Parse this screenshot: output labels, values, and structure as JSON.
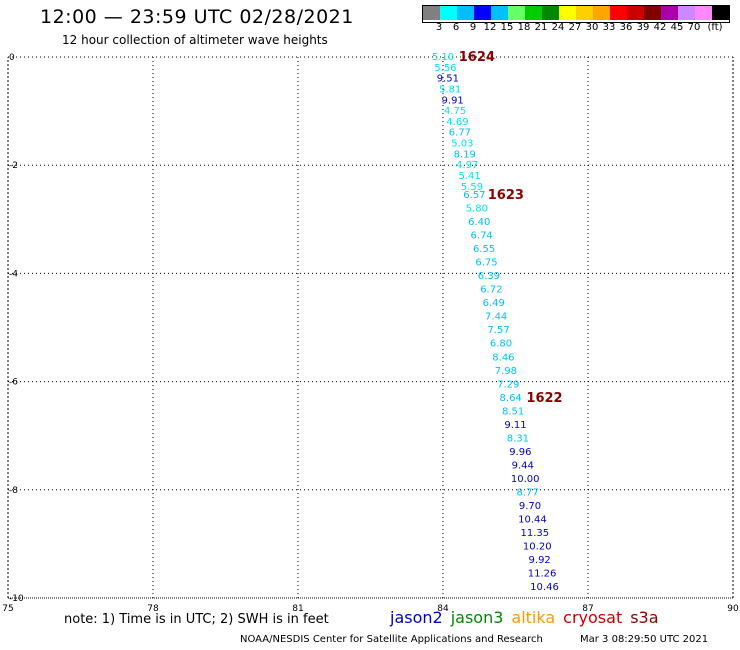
{
  "header": {
    "title": "12:00 — 23:59 UTC 02/28/2021",
    "subtitle": "12 hour collection of altimeter wave heights"
  },
  "colorbar": {
    "colors": [
      "#808080",
      "#00ffff",
      "#00bfff",
      "#0000ff",
      "#00c0ff",
      "#66ff66",
      "#00cc00",
      "#008800",
      "#ffff00",
      "#ffd000",
      "#ffa500",
      "#ff0000",
      "#cc0000",
      "#800000",
      "#aa00aa",
      "#cc88ff",
      "#ff88ff",
      "#000000"
    ],
    "labels": [
      "3",
      "6",
      "9",
      "12",
      "15",
      "18",
      "21",
      "24",
      "27",
      "30",
      "33",
      "36",
      "39",
      "42",
      "45",
      "70"
    ],
    "unit": "(ft)"
  },
  "chart_data": {
    "type": "scatter",
    "xlim": [
      75,
      90
    ],
    "ylim": [
      -10,
      0
    ],
    "x_ticks": [
      "75",
      "78",
      "81",
      "84",
      "87",
      "90"
    ],
    "y_ticks": [
      "0",
      "-2",
      "-4",
      "-6",
      "-8",
      "-10"
    ],
    "points": [
      {
        "x": 84.0,
        "y": 0.0,
        "v": "5.10",
        "c": "#00e5ee"
      },
      {
        "x": 84.05,
        "y": -0.2,
        "v": "5.56",
        "c": "#00e5ee"
      },
      {
        "x": 84.1,
        "y": -0.4,
        "v": "9.51",
        "c": "#0000cd"
      },
      {
        "x": 84.15,
        "y": -0.6,
        "v": "5.81",
        "c": "#00e5ee"
      },
      {
        "x": 84.2,
        "y": -0.8,
        "v": "9.91",
        "c": "#0000cd"
      },
      {
        "x": 84.25,
        "y": -1.0,
        "v": "4.75",
        "c": "#00e5ee"
      },
      {
        "x": 84.3,
        "y": -1.2,
        "v": "4.69",
        "c": "#00e5ee"
      },
      {
        "x": 84.35,
        "y": -1.4,
        "v": "6.77",
        "c": "#00bfff"
      },
      {
        "x": 84.4,
        "y": -1.6,
        "v": "5.03",
        "c": "#00e5ee"
      },
      {
        "x": 84.45,
        "y": -1.8,
        "v": "8.19",
        "c": "#00bfff"
      },
      {
        "x": 84.5,
        "y": -2.0,
        "v": "4.97",
        "c": "#00e5ee"
      },
      {
        "x": 84.55,
        "y": -2.2,
        "v": "5.41",
        "c": "#00e5ee"
      },
      {
        "x": 84.6,
        "y": -2.4,
        "v": "5.59",
        "c": "#00e5ee"
      },
      {
        "x": 84.65,
        "y": -2.55,
        "v": "6.57",
        "c": "#00bfff"
      },
      {
        "x": 84.7,
        "y": -2.8,
        "v": "5.80",
        "c": "#00e5ee"
      },
      {
        "x": 84.75,
        "y": -3.05,
        "v": "6.40",
        "c": "#00bfff"
      },
      {
        "x": 84.8,
        "y": -3.3,
        "v": "6.74",
        "c": "#00bfff"
      },
      {
        "x": 84.85,
        "y": -3.55,
        "v": "6.55",
        "c": "#00bfff"
      },
      {
        "x": 84.9,
        "y": -3.8,
        "v": "6.75",
        "c": "#00bfff"
      },
      {
        "x": 84.95,
        "y": -4.05,
        "v": "6.39",
        "c": "#00bfff"
      },
      {
        "x": 85.0,
        "y": -4.3,
        "v": "6.72",
        "c": "#00bfff"
      },
      {
        "x": 85.05,
        "y": -4.55,
        "v": "6.49",
        "c": "#00bfff"
      },
      {
        "x": 85.1,
        "y": -4.8,
        "v": "7.44",
        "c": "#00bfff"
      },
      {
        "x": 85.15,
        "y": -5.05,
        "v": "7.57",
        "c": "#00bfff"
      },
      {
        "x": 85.2,
        "y": -5.3,
        "v": "6.80",
        "c": "#00bfff"
      },
      {
        "x": 85.25,
        "y": -5.55,
        "v": "8.46",
        "c": "#00bfff"
      },
      {
        "x": 85.3,
        "y": -5.8,
        "v": "7.98",
        "c": "#00bfff"
      },
      {
        "x": 85.35,
        "y": -6.05,
        "v": "7.29",
        "c": "#00bfff"
      },
      {
        "x": 85.4,
        "y": -6.3,
        "v": "8.64",
        "c": "#00bfff"
      },
      {
        "x": 85.45,
        "y": -6.55,
        "v": "8.51",
        "c": "#00bfff"
      },
      {
        "x": 85.5,
        "y": -6.8,
        "v": "9.11",
        "c": "#0000cd"
      },
      {
        "x": 85.55,
        "y": -7.05,
        "v": "8.31",
        "c": "#00bfff"
      },
      {
        "x": 85.6,
        "y": -7.3,
        "v": "9.96",
        "c": "#0000cd"
      },
      {
        "x": 85.65,
        "y": -7.55,
        "v": "9.44",
        "c": "#0000cd"
      },
      {
        "x": 85.7,
        "y": -7.8,
        "v": "10.00",
        "c": "#0000cd"
      },
      {
        "x": 85.75,
        "y": -8.05,
        "v": "8.77",
        "c": "#00bfff"
      },
      {
        "x": 85.8,
        "y": -8.3,
        "v": "9.70",
        "c": "#0000cd"
      },
      {
        "x": 85.85,
        "y": -8.55,
        "v": "10.44",
        "c": "#0000cd"
      },
      {
        "x": 85.9,
        "y": -8.8,
        "v": "11.35",
        "c": "#0000cd"
      },
      {
        "x": 85.95,
        "y": -9.05,
        "v": "10.20",
        "c": "#0000cd"
      },
      {
        "x": 86.0,
        "y": -9.3,
        "v": "9.92",
        "c": "#0000cd"
      },
      {
        "x": 86.05,
        "y": -9.55,
        "v": "11.26",
        "c": "#0000cd"
      },
      {
        "x": 86.1,
        "y": -9.8,
        "v": "10.46",
        "c": "#0000cd"
      }
    ],
    "pass_labels": [
      {
        "x": 84.7,
        "y": 0.0,
        "label": "1624"
      },
      {
        "x": 85.3,
        "y": -2.55,
        "label": "1623"
      },
      {
        "x": 86.1,
        "y": -6.3,
        "label": "1622"
      }
    ]
  },
  "footer": {
    "note": "note: 1) Time is in UTC; 2) SWH is in feet",
    "legend": [
      {
        "name": "jason2",
        "color": "#0000cd"
      },
      {
        "name": "jason3",
        "color": "#008800"
      },
      {
        "name": "altika",
        "color": "#ff9900"
      },
      {
        "name": "cryosat",
        "color": "#cc0000"
      },
      {
        "name": "s3a",
        "color": "#8b0000"
      }
    ],
    "credit": "NOAA/NESDIS Center for Satellite Applications and Research",
    "timestamp": "Mar  3 08:29:50 UTC 2021"
  }
}
